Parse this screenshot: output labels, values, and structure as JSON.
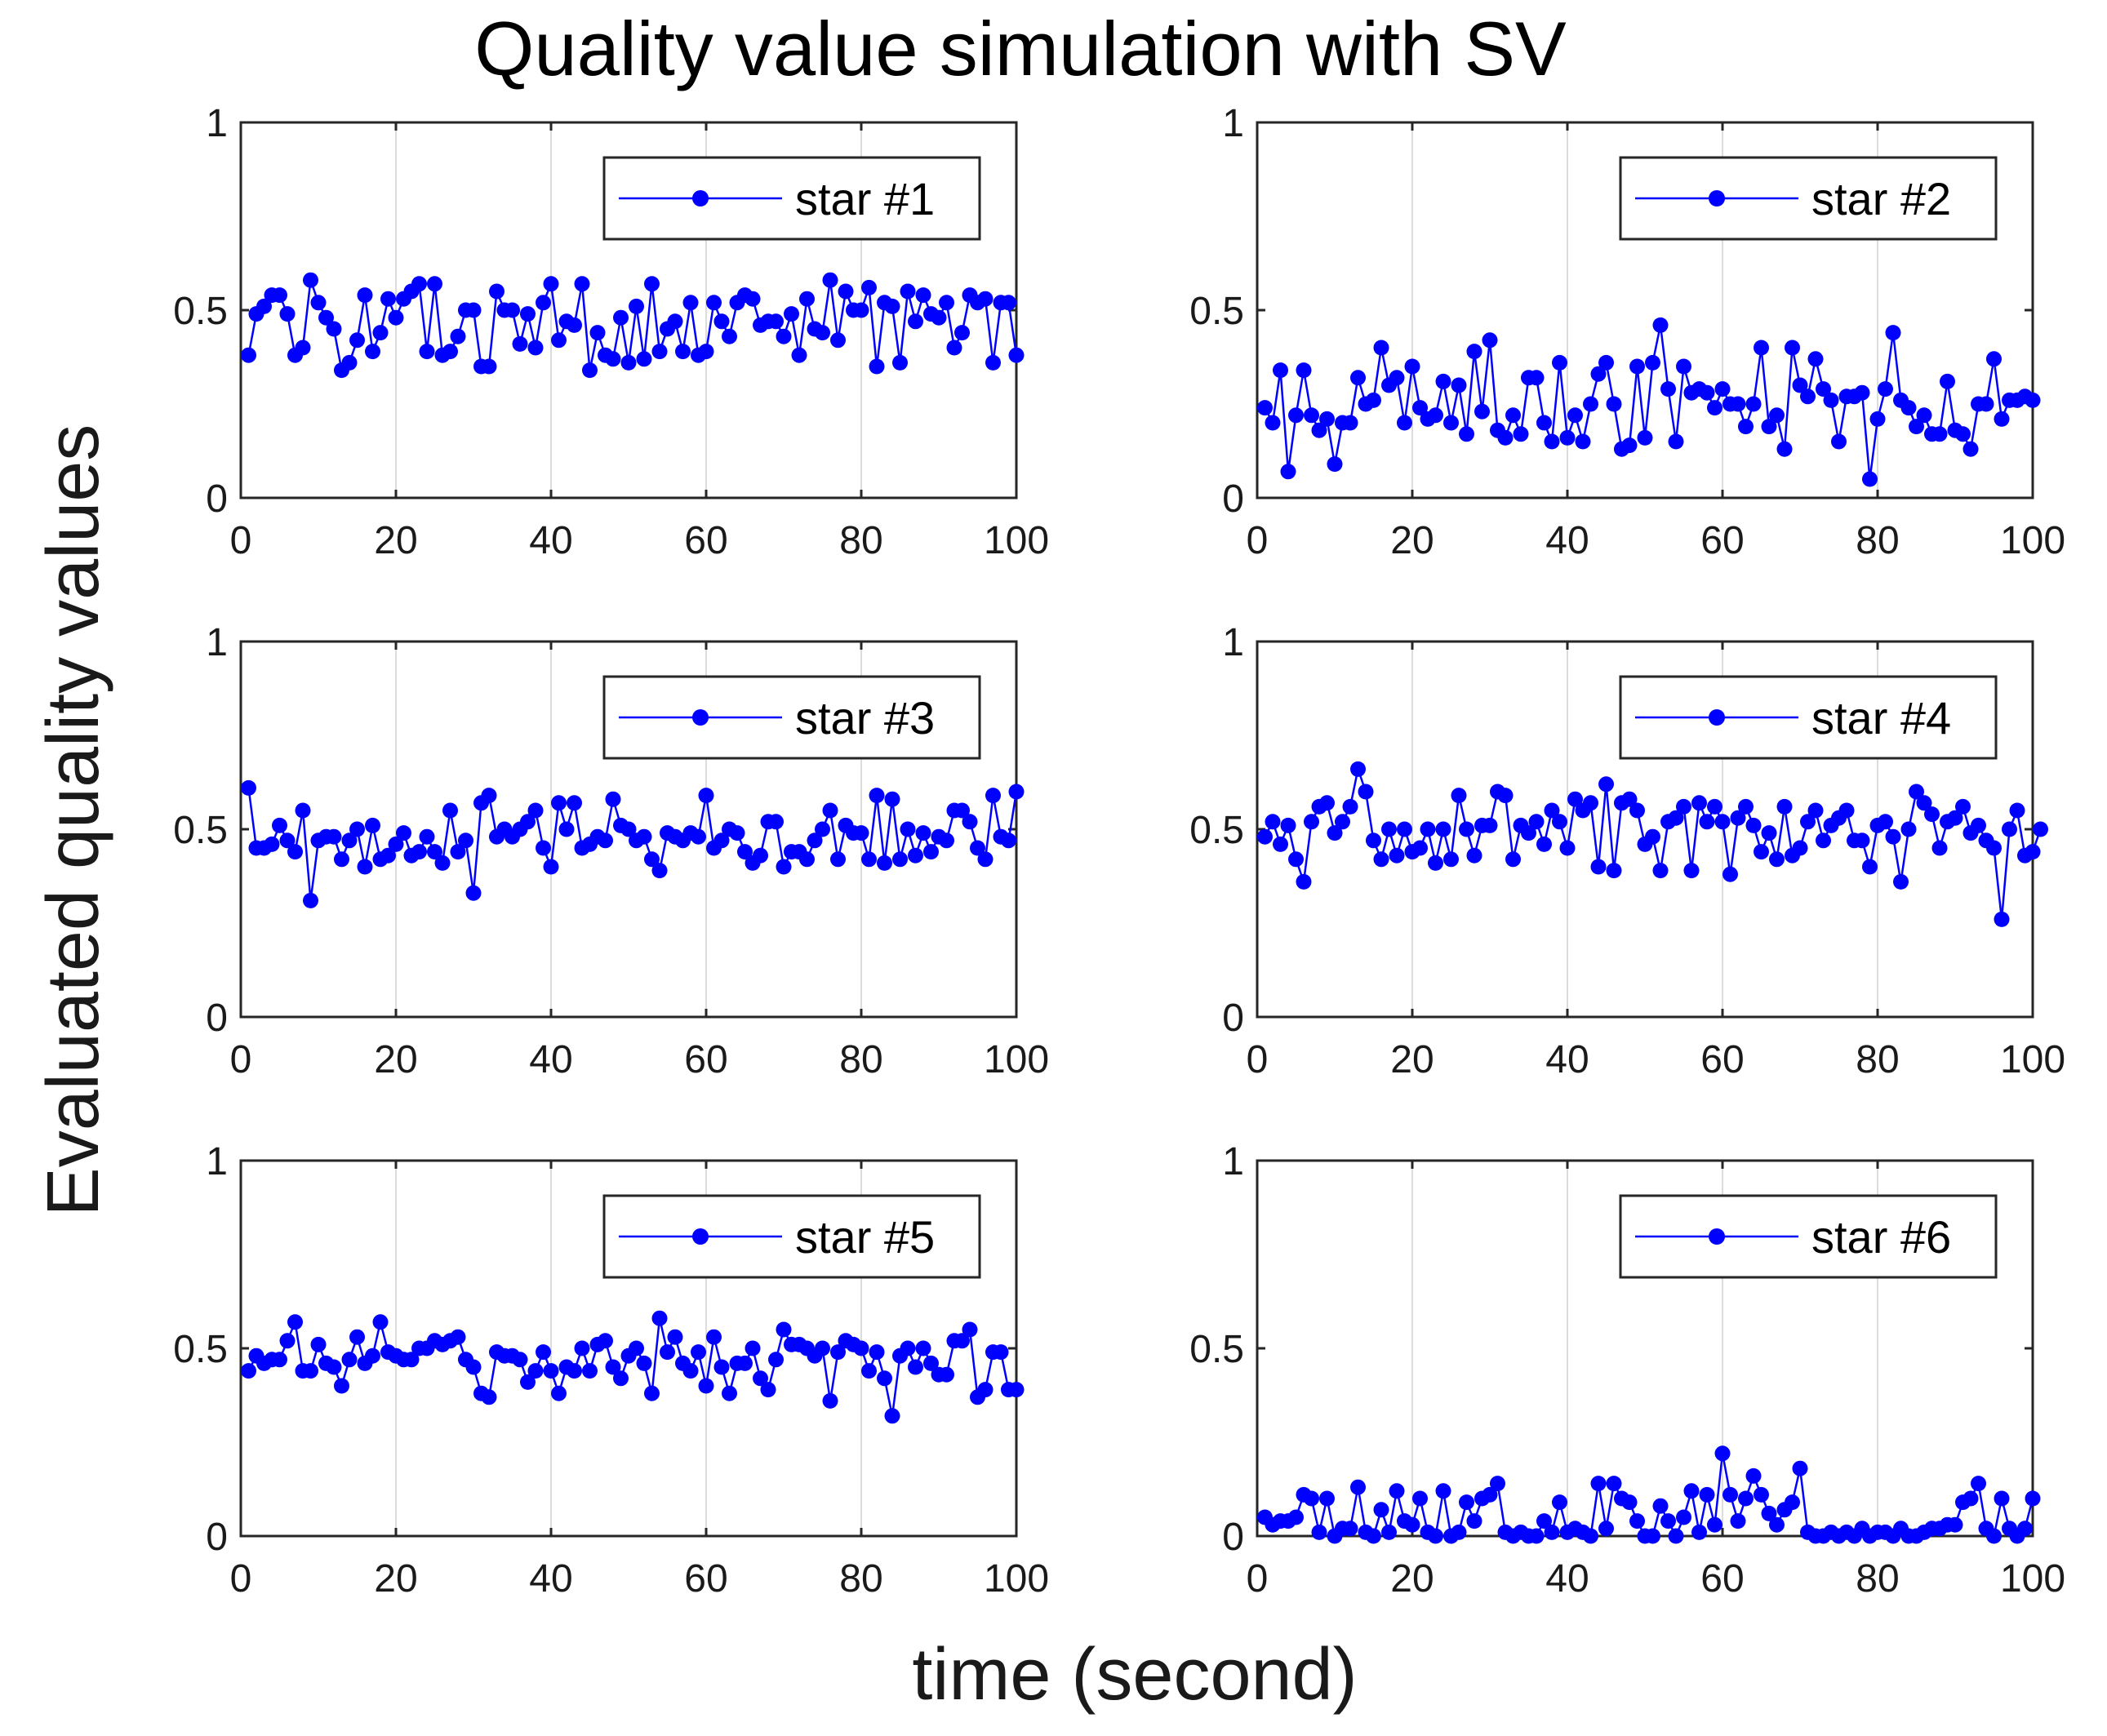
{
  "figure": {
    "title": "Quality value simulation with SV",
    "xlabel": "time (second)",
    "ylabel": "Evaluated quality values"
  },
  "colors": {
    "series": "#0000ff",
    "axes": "#262626",
    "grid": "#dcdcdc",
    "background": "#ffffff"
  },
  "chart_data": [
    {
      "type": "line",
      "marker": "circle",
      "legend": "star #1",
      "legend_position": "top-right",
      "grid": "x-major",
      "xlim": [
        0,
        100
      ],
      "ylim": [
        0,
        1
      ],
      "xticks": [
        0,
        20,
        40,
        60,
        80,
        100
      ],
      "yticks": [
        0,
        0.5,
        1
      ],
      "x_start": 1,
      "x_step": 1,
      "values": [
        0.38,
        0.49,
        0.51,
        0.54,
        0.54,
        0.49,
        0.38,
        0.4,
        0.58,
        0.52,
        0.48,
        0.45,
        0.34,
        0.36,
        0.42,
        0.54,
        0.39,
        0.44,
        0.53,
        0.48,
        0.53,
        0.55,
        0.57,
        0.39,
        0.57,
        0.38,
        0.39,
        0.43,
        0.5,
        0.5,
        0.35,
        0.35,
        0.55,
        0.5,
        0.5,
        0.41,
        0.49,
        0.4,
        0.52,
        0.57,
        0.42,
        0.47,
        0.46,
        0.57,
        0.34,
        0.44,
        0.38,
        0.37,
        0.48,
        0.36,
        0.51,
        0.37,
        0.57,
        0.39,
        0.45,
        0.47,
        0.39,
        0.52,
        0.38,
        0.39,
        0.52,
        0.47,
        0.43,
        0.52,
        0.54,
        0.53,
        0.46,
        0.47,
        0.47,
        0.43,
        0.49,
        0.38,
        0.53,
        0.45,
        0.44,
        0.58,
        0.42,
        0.55,
        0.5,
        0.5,
        0.56,
        0.35,
        0.52,
        0.51,
        0.36,
        0.55,
        0.47,
        0.54,
        0.49,
        0.48,
        0.52,
        0.4,
        0.44,
        0.54,
        0.52,
        0.53,
        0.36,
        0.52,
        0.52,
        0.38
      ]
    },
    {
      "type": "line",
      "marker": "circle",
      "legend": "star #2",
      "legend_position": "top-right",
      "grid": "x-major",
      "xlim": [
        0,
        100
      ],
      "ylim": [
        0,
        1
      ],
      "xticks": [
        0,
        20,
        40,
        60,
        80,
        100
      ],
      "yticks": [
        0,
        0.5,
        1
      ],
      "x_start": 1,
      "x_step": 1,
      "values": [
        0.24,
        0.2,
        0.34,
        0.07,
        0.22,
        0.34,
        0.22,
        0.18,
        0.21,
        0.09,
        0.2,
        0.2,
        0.32,
        0.25,
        0.26,
        0.4,
        0.3,
        0.32,
        0.2,
        0.35,
        0.24,
        0.21,
        0.22,
        0.31,
        0.2,
        0.3,
        0.17,
        0.39,
        0.23,
        0.42,
        0.18,
        0.16,
        0.22,
        0.17,
        0.32,
        0.32,
        0.2,
        0.15,
        0.36,
        0.16,
        0.22,
        0.15,
        0.25,
        0.33,
        0.36,
        0.25,
        0.13,
        0.14,
        0.35,
        0.16,
        0.36,
        0.46,
        0.29,
        0.15,
        0.35,
        0.28,
        0.29,
        0.28,
        0.24,
        0.29,
        0.25,
        0.25,
        0.19,
        0.25,
        0.4,
        0.19,
        0.22,
        0.13,
        0.4,
        0.3,
        0.27,
        0.37,
        0.29,
        0.26,
        0.15,
        0.27,
        0.27,
        0.28,
        0.05,
        0.21,
        0.29,
        0.44,
        0.26,
        0.24,
        0.19,
        0.22,
        0.17,
        0.17,
        0.31,
        0.18,
        0.17,
        0.13,
        0.25,
        0.25,
        0.37,
        0.21,
        0.26,
        0.26,
        0.27,
        0.26
      ]
    },
    {
      "type": "line",
      "marker": "circle",
      "legend": "star #3",
      "legend_position": "top-right",
      "grid": "x-major",
      "xlim": [
        0,
        100
      ],
      "ylim": [
        0,
        1
      ],
      "xticks": [
        0,
        20,
        40,
        60,
        80,
        100
      ],
      "yticks": [
        0,
        0.5,
        1
      ],
      "x_start": 1,
      "x_step": 1,
      "values": [
        0.61,
        0.45,
        0.45,
        0.46,
        0.51,
        0.47,
        0.44,
        0.55,
        0.31,
        0.47,
        0.48,
        0.48,
        0.42,
        0.47,
        0.5,
        0.4,
        0.51,
        0.42,
        0.43,
        0.46,
        0.49,
        0.43,
        0.44,
        0.48,
        0.44,
        0.41,
        0.55,
        0.44,
        0.47,
        0.33,
        0.57,
        0.59,
        0.48,
        0.5,
        0.48,
        0.5,
        0.52,
        0.55,
        0.45,
        0.4,
        0.57,
        0.5,
        0.57,
        0.45,
        0.46,
        0.48,
        0.47,
        0.58,
        0.51,
        0.5,
        0.47,
        0.48,
        0.42,
        0.39,
        0.49,
        0.48,
        0.47,
        0.49,
        0.48,
        0.59,
        0.45,
        0.47,
        0.5,
        0.49,
        0.44,
        0.41,
        0.43,
        0.52,
        0.52,
        0.4,
        0.44,
        0.44,
        0.42,
        0.47,
        0.5,
        0.55,
        0.42,
        0.51,
        0.49,
        0.49,
        0.42,
        0.59,
        0.41,
        0.58,
        0.42,
        0.5,
        0.43,
        0.49,
        0.44,
        0.48,
        0.47,
        0.55,
        0.55,
        0.52,
        0.45,
        0.42,
        0.59,
        0.48,
        0.47,
        0.6
      ]
    },
    {
      "type": "line",
      "marker": "circle",
      "legend": "star #4",
      "legend_position": "top-right",
      "grid": "x-major",
      "xlim": [
        0,
        100
      ],
      "ylim": [
        0,
        1
      ],
      "xticks": [
        0,
        20,
        40,
        60,
        80,
        100
      ],
      "yticks": [
        0,
        0.5,
        1
      ],
      "x_start": 1,
      "x_step": 1,
      "values": [
        0.48,
        0.52,
        0.46,
        0.51,
        0.42,
        0.36,
        0.52,
        0.56,
        0.57,
        0.49,
        0.52,
        0.56,
        0.66,
        0.6,
        0.47,
        0.42,
        0.5,
        0.43,
        0.5,
        0.44,
        0.45,
        0.5,
        0.41,
        0.5,
        0.42,
        0.59,
        0.5,
        0.43,
        0.51,
        0.51,
        0.6,
        0.59,
        0.42,
        0.51,
        0.49,
        0.52,
        0.46,
        0.55,
        0.52,
        0.45,
        0.58,
        0.55,
        0.57,
        0.4,
        0.62,
        0.39,
        0.57,
        0.58,
        0.55,
        0.46,
        0.48,
        0.39,
        0.52,
        0.53,
        0.56,
        0.39,
        0.57,
        0.52,
        0.56,
        0.52,
        0.38,
        0.53,
        0.56,
        0.51,
        0.44,
        0.49,
        0.42,
        0.56,
        0.43,
        0.45,
        0.52,
        0.55,
        0.47,
        0.51,
        0.53,
        0.55,
        0.47,
        0.47,
        0.4,
        0.51,
        0.52,
        0.48,
        0.36,
        0.5,
        0.6,
        0.57,
        0.54,
        0.45,
        0.52,
        0.53,
        0.56,
        0.49,
        0.51,
        0.47,
        0.45,
        0.26,
        0.5,
        0.55,
        0.43,
        0.44,
        0.5
      ]
    },
    {
      "type": "line",
      "marker": "circle",
      "legend": "star #5",
      "legend_position": "top-right",
      "grid": "x-major",
      "xlim": [
        0,
        100
      ],
      "ylim": [
        0,
        1
      ],
      "xticks": [
        0,
        20,
        40,
        60,
        80,
        100
      ],
      "yticks": [
        0,
        0.5,
        1
      ],
      "x_start": 1,
      "x_step": 1,
      "values": [
        0.44,
        0.48,
        0.46,
        0.47,
        0.47,
        0.52,
        0.57,
        0.44,
        0.44,
        0.51,
        0.46,
        0.45,
        0.4,
        0.47,
        0.53,
        0.46,
        0.48,
        0.57,
        0.49,
        0.48,
        0.47,
        0.47,
        0.5,
        0.5,
        0.52,
        0.51,
        0.52,
        0.53,
        0.47,
        0.45,
        0.38,
        0.37,
        0.49,
        0.48,
        0.48,
        0.47,
        0.41,
        0.44,
        0.49,
        0.44,
        0.38,
        0.45,
        0.44,
        0.5,
        0.44,
        0.51,
        0.52,
        0.45,
        0.42,
        0.48,
        0.5,
        0.46,
        0.38,
        0.58,
        0.49,
        0.53,
        0.46,
        0.44,
        0.49,
        0.4,
        0.53,
        0.45,
        0.38,
        0.46,
        0.46,
        0.5,
        0.42,
        0.39,
        0.47,
        0.55,
        0.51,
        0.51,
        0.5,
        0.48,
        0.5,
        0.36,
        0.49,
        0.52,
        0.51,
        0.5,
        0.44,
        0.49,
        0.42,
        0.32,
        0.48,
        0.5,
        0.45,
        0.5,
        0.46,
        0.43,
        0.43,
        0.52,
        0.52,
        0.55,
        0.37,
        0.39,
        0.49,
        0.49,
        0.39,
        0.39
      ]
    },
    {
      "type": "line",
      "marker": "circle",
      "legend": "star #6",
      "legend_position": "top-right",
      "grid": "x-major",
      "xlim": [
        0,
        100
      ],
      "ylim": [
        0,
        1
      ],
      "xticks": [
        0,
        20,
        40,
        60,
        80,
        100
      ],
      "yticks": [
        0,
        0.5,
        1
      ],
      "x_start": 1,
      "x_step": 1,
      "values": [
        0.05,
        0.03,
        0.04,
        0.04,
        0.05,
        0.11,
        0.1,
        0.01,
        0.1,
        0.0,
        0.02,
        0.02,
        0.13,
        0.01,
        0.0,
        0.07,
        0.01,
        0.12,
        0.04,
        0.03,
        0.1,
        0.01,
        0.0,
        0.12,
        0.0,
        0.01,
        0.09,
        0.04,
        0.1,
        0.11,
        0.14,
        0.01,
        0.0,
        0.01,
        0.0,
        0.0,
        0.04,
        0.01,
        0.09,
        0.01,
        0.02,
        0.01,
        0.0,
        0.14,
        0.02,
        0.14,
        0.1,
        0.09,
        0.04,
        0.0,
        0.0,
        0.08,
        0.04,
        0.0,
        0.05,
        0.12,
        0.01,
        0.11,
        0.03,
        0.22,
        0.11,
        0.04,
        0.1,
        0.16,
        0.11,
        0.06,
        0.03,
        0.07,
        0.09,
        0.18,
        0.01,
        0.0,
        0.0,
        0.01,
        0.0,
        0.01,
        0.0,
        0.02,
        0.0,
        0.01,
        0.01,
        0.0,
        0.02,
        0.0,
        0.0,
        0.01,
        0.02,
        0.02,
        0.03,
        0.03,
        0.09,
        0.1,
        0.14,
        0.02,
        0.0,
        0.1,
        0.02,
        0.0,
        0.02,
        0.1
      ]
    }
  ]
}
